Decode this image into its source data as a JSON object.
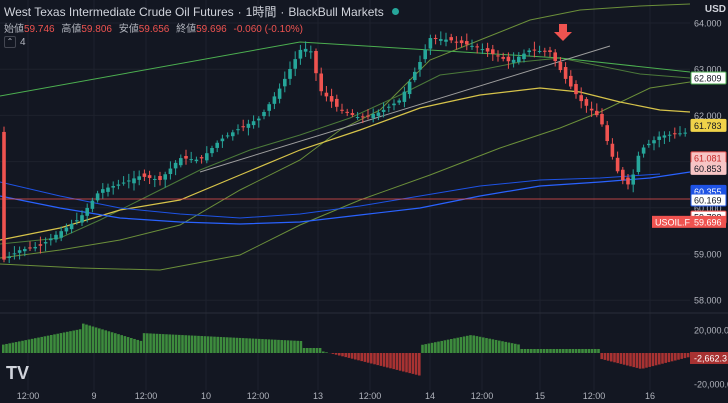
{
  "header": {
    "title": "West Texas Intermediate Crude Oil Futures",
    "separator1": "·",
    "timeframe": "1時間",
    "separator2": "·",
    "broker": "BlackBull Markets"
  },
  "ohlc": {
    "open_label": "始値",
    "open": "59.746",
    "high_label": "高値",
    "high": "59.806",
    "low_label": "安値",
    "low": "59.656",
    "close_label": "終値",
    "close": "59.696",
    "change": "-0.060 (-0.10%)"
  },
  "indicators": {
    "count": "4"
  },
  "currency": "USD",
  "price_axis": {
    "ticks": [
      "64.000",
      "63.000",
      "62.000",
      "61.000",
      "60.000",
      "59.000",
      "58.000"
    ]
  },
  "price_badges": [
    {
      "label": "62.809",
      "value": 62.809,
      "bg": "#ffffff",
      "border": "#4caf50",
      "fg": "#131722"
    },
    {
      "label": "61.783",
      "value": 61.783,
      "bg": "#f0d34a",
      "border": "#f0d34a",
      "fg": "#131722"
    },
    {
      "label": "61.081",
      "value": 61.081,
      "bg": "#f7c5c5",
      "border": "#ef5350",
      "fg": "#c62828"
    },
    {
      "label": "60.853",
      "value": 60.853,
      "bg": "#f7c5c5",
      "border": "#f7c5c5",
      "fg": "#131722"
    },
    {
      "label": "60.355",
      "value": 60.355,
      "bg": "#1e53e5",
      "border": "#1e53e5",
      "fg": "#ffffff"
    },
    {
      "label": "60.169",
      "value": 60.169,
      "bg": "#ffffff",
      "border": "#1e53e5",
      "fg": "#131722"
    },
    {
      "label": "59.798",
      "value": 59.798,
      "bg": "#ffffff",
      "border": "#ef5350",
      "fg": "#131722"
    }
  ],
  "symbol_tag": {
    "symbol": "USOIL.F",
    "price": "59.696",
    "value": 59.696
  },
  "volume_axis": {
    "ticks": [
      "20,000.00",
      "-2,662.3",
      "-20,000.00"
    ]
  },
  "time_axis": {
    "labels": [
      "12:00",
      "9",
      "12:00",
      "10",
      "12:00",
      "13",
      "12:00",
      "14",
      "12:00",
      "15",
      "12:00",
      "16"
    ]
  },
  "logo": "TV",
  "colors": {
    "up": "#26a69a",
    "down": "#ef5350",
    "bg": "#131722",
    "ma_yellow": "#d6c34a",
    "ma_blue": "#2962ff",
    "band_green": "#6b8f3a",
    "trend_line": "#9e9e9e"
  }
}
